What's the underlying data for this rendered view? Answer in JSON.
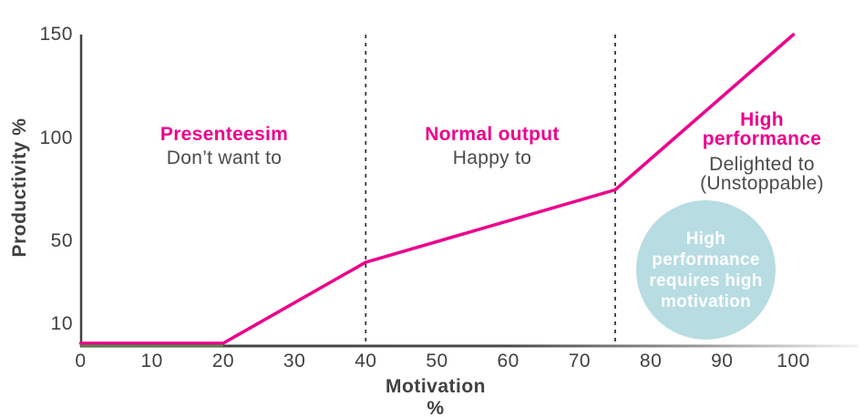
{
  "colors": {
    "pink": "#ec008c",
    "axis_gray": "#414042",
    "subtitle_gray": "#4b4b4e",
    "dashed_gray": "#363636",
    "green": "#3aaa35",
    "circle_fill": "#b7dce2",
    "circle_text": "#ffffff"
  },
  "chart_data": {
    "type": "line",
    "title": "",
    "xlabel": "Motivation %",
    "ylabel": "Productivity %",
    "x_ticks": [
      0,
      10,
      20,
      30,
      40,
      50,
      60,
      70,
      80,
      90,
      100
    ],
    "y_ticks": [
      150,
      100,
      50,
      10
    ],
    "xlim": [
      0,
      109
    ],
    "ylim": [
      0,
      150
    ],
    "grid": false,
    "legend": false,
    "series": [
      {
        "name": "productivity-line",
        "color": "#ec008c",
        "x": [
          0,
          20,
          40,
          75,
          100
        ],
        "y": [
          0,
          0,
          40,
          75,
          150
        ]
      },
      {
        "name": "baseline-green-segment",
        "color": "#3aaa35",
        "x": [
          0,
          20
        ],
        "y": [
          0,
          0
        ]
      }
    ],
    "dashed_boundaries_x": [
      40,
      75
    ],
    "zones": [
      {
        "title": "Presenteesim",
        "subtitle": "Don’t want to",
        "x_range": [
          0,
          40
        ]
      },
      {
        "title": "Normal output",
        "subtitle": "Happy to",
        "x_range": [
          40,
          75
        ]
      },
      {
        "title": "High performance",
        "subtitle": "Delighted to (Unstoppable)",
        "x_range": [
          75,
          100
        ]
      }
    ],
    "annotation_circle": {
      "text": "High performance requires high motivation",
      "center_x": 82,
      "center_y": 37
    }
  }
}
